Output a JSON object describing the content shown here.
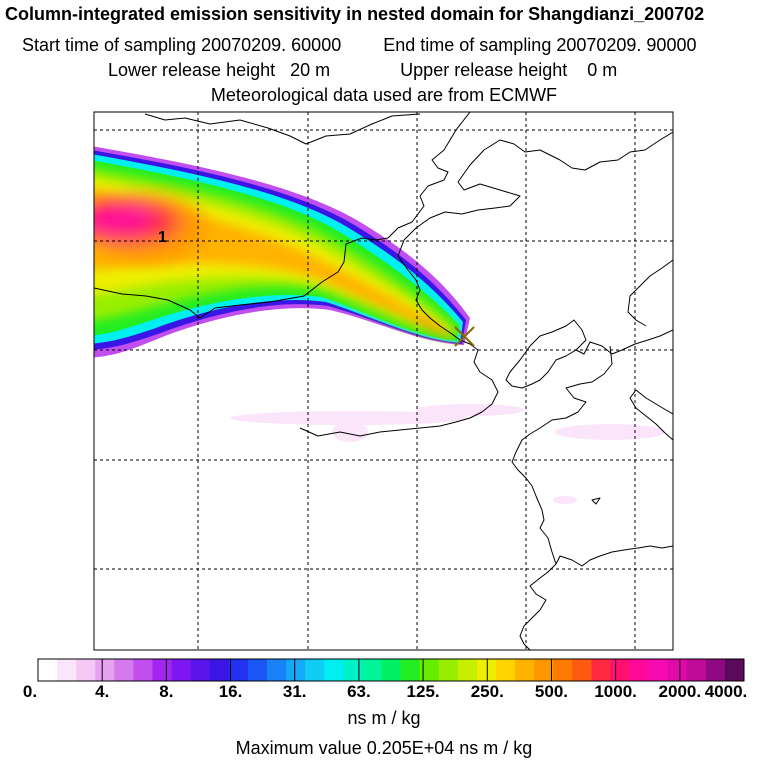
{
  "header": {
    "title": "Column-integrated emission sensitivity in nested domain for Shangdianzi_200702",
    "start_label": "Start time of sampling 20070209. 60000",
    "end_label": "End time of sampling 20070209. 90000",
    "lower_label": "Lower release height   20 m",
    "upper_label": "Upper release height    0 m",
    "met_label": "Meteorological data used are from ECMWF"
  },
  "map": {
    "contour_label": "1",
    "receptor_marker": "X"
  },
  "colorbar": {
    "tick_labels": [
      "0.",
      "4.",
      "8.",
      "16.",
      "31.",
      "63.",
      "125.",
      "250.",
      "500.",
      "1000.",
      "2000.",
      "4000."
    ],
    "units": "ns m / kg",
    "colors": [
      "#ffffff",
      "#fbe5fb",
      "#f4c9f6",
      "#e7a3f0",
      "#d579ec",
      "#c14ff0",
      "#a424f2",
      "#7d16f0",
      "#5a16ea",
      "#3a16e6",
      "#2232f0",
      "#1a58f5",
      "#1a82f8",
      "#16a9fa",
      "#10cdf6",
      "#00f0f0",
      "#00f0c8",
      "#00f59a",
      "#00f066",
      "#22ee22",
      "#66ee00",
      "#99ee00",
      "#c8ee00",
      "#eeee00",
      "#ffd400",
      "#ffb300",
      "#ff9800",
      "#ff7a00",
      "#ff5a10",
      "#ff2a40",
      "#ff1070",
      "#ff0a98",
      "#f70ab0",
      "#e00aab",
      "#c00a9a",
      "#8f0a82",
      "#5a0a58"
    ]
  },
  "max_value_text": "Maximum value  0.205E+04 ns m / kg"
}
